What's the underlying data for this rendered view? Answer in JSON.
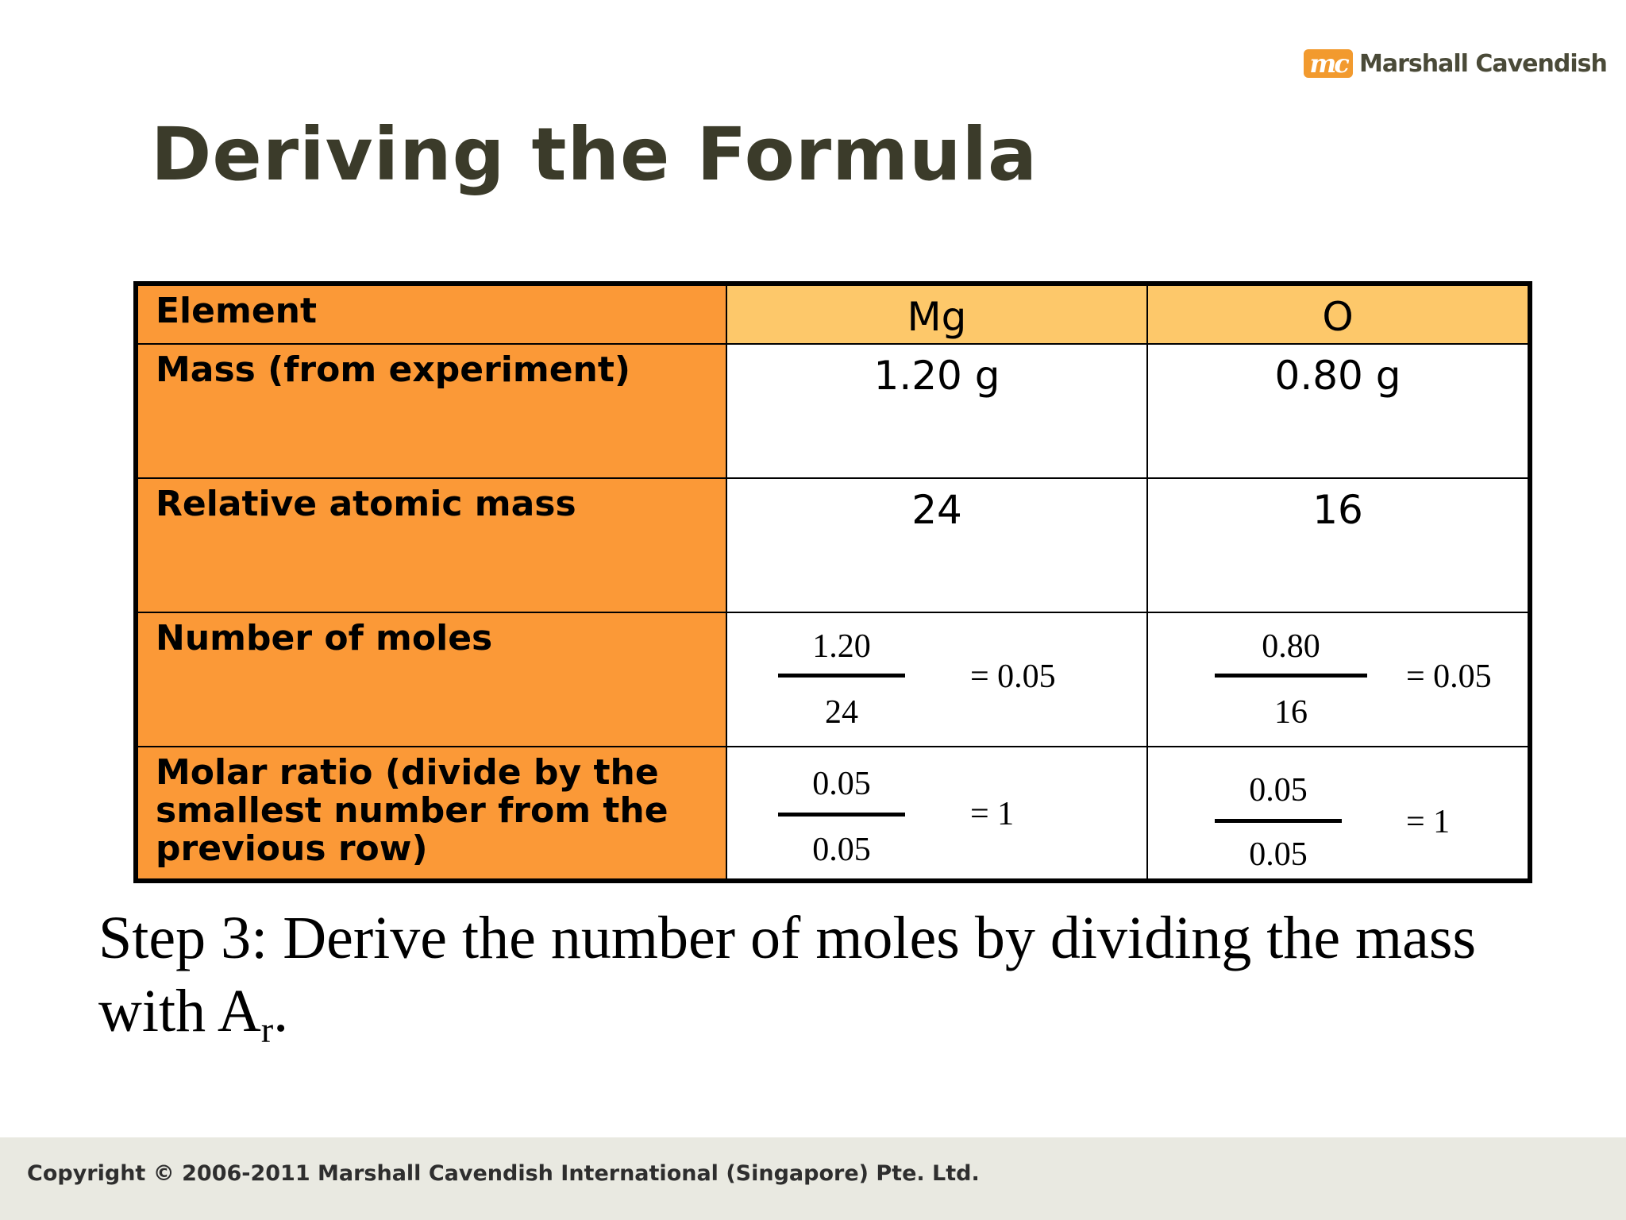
{
  "logo": {
    "badge": "mc",
    "name": "Marshall Cavendish"
  },
  "title": "Deriving the Formula",
  "table": {
    "header": {
      "label": "Element",
      "mg": "Mg",
      "o": "O"
    },
    "mass": {
      "label": "Mass (from experiment)",
      "mg": "1.20 g",
      "o": "0.80 g"
    },
    "ar": {
      "label": "Relative atomic mass",
      "mg": "24",
      "o": "16"
    },
    "moles": {
      "label": "Number of moles",
      "mg": {
        "num": "1.20",
        "den": "24",
        "result": "= 0.05"
      },
      "o": {
        "num": "0.80",
        "den": "16",
        "result": "= 0.05"
      }
    },
    "ratio": {
      "label": "Molar ratio (divide by the smallest number from the previous row)",
      "mg": {
        "num": "0.05",
        "den": "0.05",
        "result": "= 1"
      },
      "o": {
        "num": "0.05",
        "den": "0.05",
        "result": "= 1"
      }
    },
    "colors": {
      "label_bg": "#fb9937",
      "header_bg": "#fdc86a"
    }
  },
  "step": {
    "text": "Step 3: Derive the number of moles by dividing the mass with A",
    "subscript": "r",
    "end": "."
  },
  "footer": {
    "copyright": "Copyright © 2006-2011 Marshall Cavendish International (Singapore) Pte. Ltd."
  },
  "colors": {
    "title": "#3b3b2a",
    "logo_orange": "#f29a2e",
    "footer_bg": "#e9e9e1"
  }
}
